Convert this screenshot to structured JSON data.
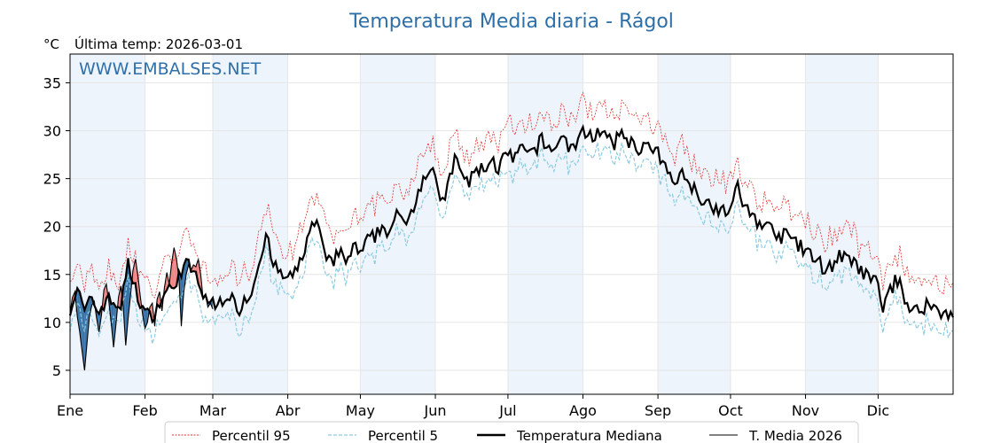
{
  "chart_data": {
    "type": "line",
    "title": "Temperatura Media diaria - Rágol",
    "unit": "°C",
    "subtitle": "Última temp: 2026-03-01",
    "watermark": "WWW.EMBALSES.NET",
    "xlim": [
      0,
      365
    ],
    "ylim": [
      2.5,
      38
    ],
    "y_ticks": [
      5,
      10,
      15,
      20,
      25,
      30,
      35
    ],
    "x_ticks": [
      {
        "day": 0,
        "label": "Ene"
      },
      {
        "day": 31,
        "label": "Feb"
      },
      {
        "day": 59,
        "label": "Mar"
      },
      {
        "day": 90,
        "label": "Abr"
      },
      {
        "day": 120,
        "label": "May"
      },
      {
        "day": 151,
        "label": "Jun"
      },
      {
        "day": 181,
        "label": "Jul"
      },
      {
        "day": 212,
        "label": "Ago"
      },
      {
        "day": 243,
        "label": "Sep"
      },
      {
        "day": 273,
        "label": "Oct"
      },
      {
        "day": 304,
        "label": "Nov"
      },
      {
        "day": 334,
        "label": "Dic"
      }
    ],
    "shaded_months": [
      [
        0,
        31
      ],
      [
        59,
        90
      ],
      [
        120,
        151
      ],
      [
        181,
        212
      ],
      [
        243,
        273
      ],
      [
        304,
        334
      ]
    ],
    "grid": true,
    "legend_position": "bottom",
    "colors": {
      "p95": "#e03030",
      "p5": "#8ccbe0",
      "median": "#000000",
      "current": "#000000",
      "above": "#f08080",
      "below": "#2f6da3",
      "month_shade": "#eef4fb"
    },
    "median_keys": [
      [
        0,
        11.5
      ],
      [
        3,
        13.5
      ],
      [
        6,
        11
      ],
      [
        9,
        12.5
      ],
      [
        12,
        11
      ],
      [
        15,
        12.5
      ],
      [
        18,
        12
      ],
      [
        21,
        11.8
      ],
      [
        24,
        16
      ],
      [
        27,
        13.5
      ],
      [
        30,
        11.5
      ],
      [
        33,
        10.5
      ],
      [
        36,
        11.5
      ],
      [
        39,
        13
      ],
      [
        42,
        13.5
      ],
      [
        45,
        15
      ],
      [
        48,
        16
      ],
      [
        51,
        15.5
      ],
      [
        54,
        13
      ],
      [
        57,
        12.5
      ],
      [
        60,
        11.5
      ],
      [
        63,
        12.5
      ],
      [
        66,
        13
      ],
      [
        69,
        11
      ],
      [
        72,
        12.5
      ],
      [
        75,
        13
      ],
      [
        78,
        16.5
      ],
      [
        81,
        19
      ],
      [
        84,
        16
      ],
      [
        87,
        15
      ],
      [
        90,
        14.5
      ],
      [
        93,
        15
      ],
      [
        96,
        17
      ],
      [
        99,
        19.5
      ],
      [
        102,
        20.5
      ],
      [
        105,
        17
      ],
      [
        108,
        16
      ],
      [
        111,
        17.5
      ],
      [
        114,
        16
      ],
      [
        117,
        18
      ],
      [
        120,
        17
      ],
      [
        123,
        18.5
      ],
      [
        126,
        19
      ],
      [
        129,
        20
      ],
      [
        132,
        19.5
      ],
      [
        135,
        21
      ],
      [
        138,
        20.5
      ],
      [
        141,
        21.5
      ],
      [
        144,
        24
      ],
      [
        147,
        25.5
      ],
      [
        150,
        26.5
      ],
      [
        153,
        22
      ],
      [
        156,
        24
      ],
      [
        159,
        27
      ],
      [
        162,
        25.5
      ],
      [
        165,
        24.5
      ],
      [
        168,
        26
      ],
      [
        171,
        26
      ],
      [
        174,
        27
      ],
      [
        177,
        26
      ],
      [
        180,
        27.5
      ],
      [
        183,
        27
      ],
      [
        186,
        28
      ],
      [
        189,
        27.5
      ],
      [
        192,
        28
      ],
      [
        195,
        29
      ],
      [
        198,
        28
      ],
      [
        201,
        28.5
      ],
      [
        204,
        29.5
      ],
      [
        207,
        28
      ],
      [
        210,
        29
      ],
      [
        213,
        30
      ],
      [
        216,
        29.5
      ],
      [
        219,
        30
      ],
      [
        222,
        29
      ],
      [
        225,
        28.5
      ],
      [
        228,
        30
      ],
      [
        231,
        29
      ],
      [
        234,
        28
      ],
      [
        237,
        28.5
      ],
      [
        240,
        28
      ],
      [
        243,
        27.5
      ],
      [
        246,
        26
      ],
      [
        249,
        25
      ],
      [
        252,
        25.5
      ],
      [
        255,
        25
      ],
      [
        258,
        24
      ],
      [
        261,
        23
      ],
      [
        264,
        22.5
      ],
      [
        267,
        22
      ],
      [
        270,
        21.5
      ],
      [
        273,
        22
      ],
      [
        276,
        24
      ],
      [
        279,
        22
      ],
      [
        282,
        21
      ],
      [
        285,
        20.5
      ],
      [
        288,
        20
      ],
      [
        291,
        19.5
      ],
      [
        294,
        19
      ],
      [
        297,
        19
      ],
      [
        300,
        18.5
      ],
      [
        303,
        17.5
      ],
      [
        306,
        17
      ],
      [
        309,
        16.5
      ],
      [
        312,
        15.5
      ],
      [
        315,
        16
      ],
      [
        318,
        17
      ],
      [
        321,
        16.5
      ],
      [
        324,
        16
      ],
      [
        327,
        15.5
      ],
      [
        330,
        14.5
      ],
      [
        333,
        14.5
      ],
      [
        336,
        11.5
      ],
      [
        339,
        13.5
      ],
      [
        342,
        14.5
      ],
      [
        345,
        12.5
      ],
      [
        348,
        11.5
      ],
      [
        351,
        11
      ],
      [
        354,
        12
      ],
      [
        357,
        11.5
      ],
      [
        360,
        11
      ],
      [
        363,
        11
      ],
      [
        365,
        11
      ]
    ],
    "median_noise": 0.8,
    "p95_offset": 2.8,
    "p5_offset": -1.9,
    "current_2026": {
      "start": "2026-01-01",
      "end": "2026-03-01",
      "values": [
        11.0,
        12.6,
        13.2,
        10.6,
        9.0,
        7.0,
        5.0,
        7.8,
        10.6,
        11.8,
        12.2,
        10.4,
        9.0,
        10.8,
        13.4,
        14.0,
        12.2,
        10.0,
        7.4,
        9.8,
        12.6,
        13.8,
        11.6,
        7.6,
        10.4,
        12.8,
        15.4,
        16.6,
        15.0,
        12.8,
        10.8,
        9.4,
        10.0,
        11.6,
        12.0,
        9.6,
        12.4,
        13.2,
        11.2,
        13.6,
        15.2,
        14.0,
        16.2,
        17.8,
        16.6,
        14.6,
        9.6,
        13.2,
        15.0,
        16.0,
        15.4,
        16.0,
        15.8,
        16.6,
        15.0,
        12.4,
        12.8,
        11.6,
        12.0,
        11.4
      ]
    },
    "legend": [
      {
        "key": "p95",
        "label": "Percentil 95"
      },
      {
        "key": "p5",
        "label": "Percentil 5"
      },
      {
        "key": "median",
        "label": "Temperatura Mediana"
      },
      {
        "key": "current",
        "label": "T. Media 2026"
      }
    ]
  }
}
